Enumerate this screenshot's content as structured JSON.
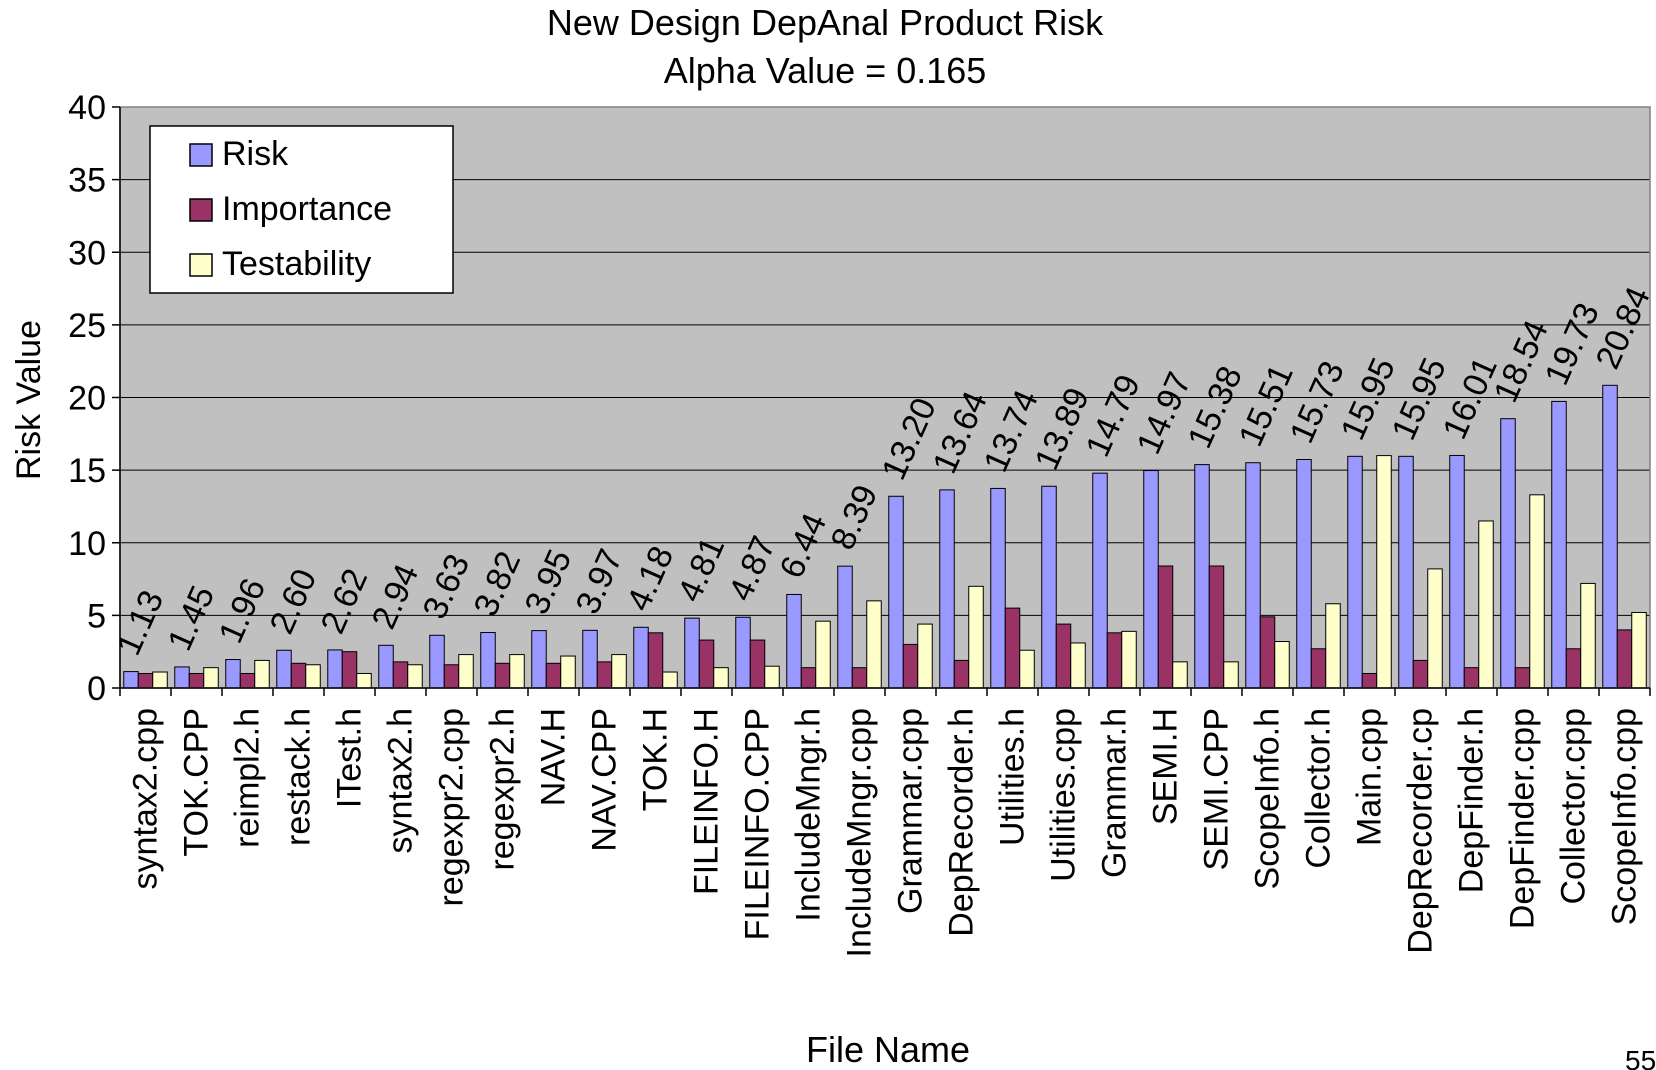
{
  "chart_data": {
    "type": "bar",
    "title": "New Design DepAnal Product Risk",
    "subtitle": "Alpha Value = 0.165",
    "xlabel": "File Name",
    "ylabel": "Risk Value",
    "ylim": [
      0,
      40
    ],
    "yticks": [
      0,
      5,
      10,
      15,
      20,
      25,
      30,
      35,
      40
    ],
    "grid": true,
    "legend_position": "top-left",
    "categories": [
      "syntax2.cpp",
      "TOK.CPP",
      "reimpl2.h",
      "restack.h",
      "ITest.h",
      "syntax2.h",
      "regexpr2.cpp",
      "regexpr2.h",
      "NAV.H",
      "NAV.CPP",
      "TOK.H",
      "FILEINFO.H",
      "FILEINFO.CPP",
      "IncludeMngr.h",
      "IncludeMngr.cpp",
      "Grammar.cpp",
      "DepRecorder.h",
      "Utilities.h",
      "Utilities.cpp",
      "Grammar.h",
      "SEMI.H",
      "SEMI.CPP",
      "ScopeInfo.h",
      "Collector.h",
      "Main.cpp",
      "DepRecorder.cp",
      "DepFinder.h",
      "DepFinder.cpp",
      "Collector.cpp",
      "ScopeInfo.cpp"
    ],
    "series": [
      {
        "name": "Risk",
        "color": "#9999ff",
        "values": [
          1.13,
          1.45,
          1.96,
          2.6,
          2.62,
          2.94,
          3.63,
          3.82,
          3.95,
          3.97,
          4.18,
          4.81,
          4.87,
          6.44,
          8.39,
          13.2,
          13.64,
          13.74,
          13.89,
          14.79,
          14.97,
          15.38,
          15.51,
          15.73,
          15.95,
          15.95,
          16.01,
          18.54,
          19.73,
          20.84
        ]
      },
      {
        "name": "Importance",
        "color": "#993366",
        "values": [
          1.0,
          1.0,
          1.0,
          1.7,
          2.5,
          1.8,
          1.6,
          1.7,
          1.7,
          1.8,
          3.8,
          3.3,
          3.3,
          1.4,
          1.4,
          3.0,
          1.9,
          5.5,
          4.4,
          3.8,
          8.4,
          8.4,
          4.9,
          2.7,
          1.0,
          1.9,
          1.4,
          1.4,
          2.7,
          4.0
        ]
      },
      {
        "name": "Testability",
        "color": "#ffffcc",
        "values": [
          1.1,
          1.4,
          1.9,
          1.6,
          1.0,
          1.6,
          2.3,
          2.3,
          2.2,
          2.3,
          1.1,
          1.4,
          1.5,
          4.6,
          6.0,
          4.4,
          7.0,
          2.6,
          3.1,
          3.9,
          1.8,
          1.8,
          3.2,
          5.8,
          16.0,
          8.2,
          11.5,
          13.3,
          7.2,
          5.2
        ]
      }
    ],
    "data_labels": [
      "1.13",
      "1.45",
      "1.96",
      "2.60",
      "2.62",
      "2.94",
      "3.63",
      "3.82",
      "3.95",
      "3.97",
      "4.18",
      "4.81",
      "4.87",
      "6.44",
      "8.39",
      "13.20",
      "13.64",
      "13.74",
      "13.89",
      "14.79",
      "14.97",
      "15.38",
      "15.51",
      "15.73",
      "15.95",
      "15.95",
      "16.01",
      "18.54",
      "19.73",
      "20.84"
    ],
    "plot_background": "#c0c0c0"
  },
  "page_number": "55"
}
